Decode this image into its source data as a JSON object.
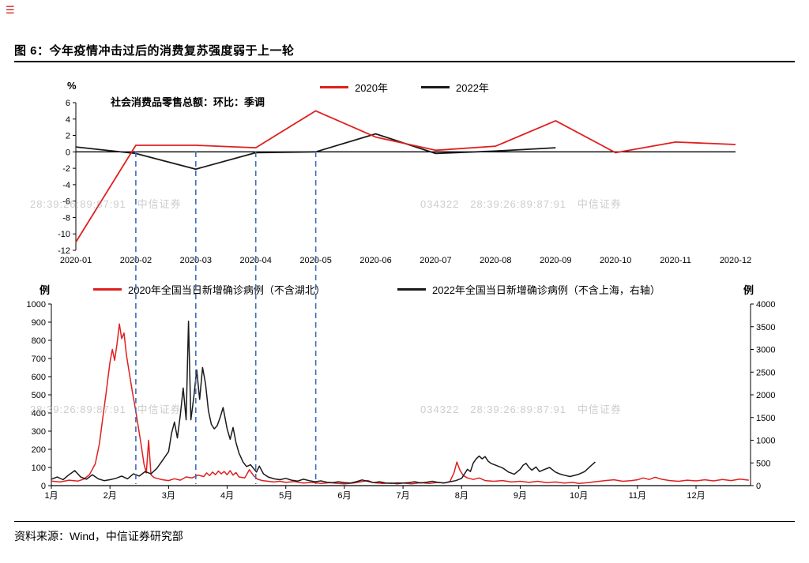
{
  "page": {
    "corner_icon": "☰",
    "title": "图 6：今年疫情冲击过后的消费复苏强度弱于上一轮",
    "source": "资料来源：Wind，中信证券研究部"
  },
  "watermarks": {
    "row1_left": "28:39:26:89:87:91   中信证券",
    "row1_right": "034322   28:39:26:89:87:91   中信证券",
    "row2_left": "28:39:26:89:87:91   中信证券",
    "row2_right": "034322   28:39:26:89:87:91   中信证券"
  },
  "chart_data": [
    {
      "type": "line",
      "title": "社会消费品零售总额：环比：季调",
      "ylabel": "%",
      "ylim": [
        -12,
        6
      ],
      "yticks": [
        6,
        4,
        2,
        0,
        -2,
        -4,
        -6,
        -8,
        -10,
        -12
      ],
      "grid": false,
      "legend_position": "top",
      "categories": [
        "2020-01",
        "2020-02",
        "2020-03",
        "2020-04",
        "2020-05",
        "2020-06",
        "2020-07",
        "2020-08",
        "2020-09",
        "2020-10",
        "2020-11",
        "2020-12"
      ],
      "series": [
        {
          "name": "2020年",
          "color": "#e01f1f",
          "values": [
            -11,
            0.8,
            0.8,
            0.5,
            5.0,
            1.8,
            0.2,
            0.7,
            3.8,
            -0.1,
            1.2,
            0.9
          ]
        },
        {
          "name": "2022年",
          "color": "#1a1a1a",
          "values": [
            0.6,
            -0.2,
            -2.1,
            -0.1,
            0.0,
            2.2,
            -0.2,
            0.1,
            0.5,
            null,
            null,
            null
          ]
        }
      ],
      "dashed_guides_at_categories": [
        "2020-02",
        "2020-03",
        "2020-04",
        "2020-05"
      ],
      "dashed_guide_color": "#3f6fb5"
    },
    {
      "type": "line",
      "xlim": [
        1,
        12.93
      ],
      "x_ticks": [
        "1月",
        "2月",
        "3月",
        "4月",
        "5月",
        "6月",
        "7月",
        "8月",
        "9月",
        "10月",
        "11月",
        "12月"
      ],
      "left_axis": {
        "label": "例",
        "lim": [
          0,
          1000
        ],
        "ticks": [
          0,
          100,
          200,
          300,
          400,
          500,
          600,
          700,
          800,
          900,
          1000
        ]
      },
      "right_axis": {
        "label": "例",
        "lim": [
          0,
          4000
        ],
        "ticks": [
          0,
          500,
          1000,
          1500,
          2000,
          2500,
          3000,
          3500,
          4000
        ]
      },
      "series": [
        {
          "name": "2020年全国当日新增确诊病例（不含湖北）",
          "color": "#e01f1f",
          "axis": "left",
          "points": [
            [
              1.0,
              25
            ],
            [
              1.15,
              20
            ],
            [
              1.3,
              30
            ],
            [
              1.45,
              25
            ],
            [
              1.55,
              35
            ],
            [
              1.65,
              60
            ],
            [
              1.75,
              120
            ],
            [
              1.82,
              230
            ],
            [
              1.88,
              380
            ],
            [
              1.93,
              500
            ],
            [
              2.0,
              680
            ],
            [
              2.04,
              750
            ],
            [
              2.08,
              690
            ],
            [
              2.12,
              780
            ],
            [
              2.16,
              890
            ],
            [
              2.2,
              810
            ],
            [
              2.24,
              840
            ],
            [
              2.28,
              720
            ],
            [
              2.33,
              620
            ],
            [
              2.38,
              520
            ],
            [
              2.43,
              430
            ],
            [
              2.48,
              330
            ],
            [
              2.53,
              230
            ],
            [
              2.58,
              120
            ],
            [
              2.62,
              70
            ],
            [
              2.66,
              250
            ],
            [
              2.7,
              60
            ],
            [
              2.75,
              45
            ],
            [
              2.8,
              40
            ],
            [
              2.9,
              32
            ],
            [
              3.0,
              28
            ],
            [
              3.1,
              38
            ],
            [
              3.2,
              30
            ],
            [
              3.3,
              48
            ],
            [
              3.4,
              42
            ],
            [
              3.5,
              58
            ],
            [
              3.6,
              50
            ],
            [
              3.65,
              70
            ],
            [
              3.7,
              55
            ],
            [
              3.75,
              75
            ],
            [
              3.8,
              60
            ],
            [
              3.85,
              80
            ],
            [
              3.9,
              65
            ],
            [
              3.95,
              78
            ],
            [
              4.0,
              60
            ],
            [
              4.05,
              82
            ],
            [
              4.1,
              58
            ],
            [
              4.15,
              72
            ],
            [
              4.2,
              48
            ],
            [
              4.3,
              42
            ],
            [
              4.38,
              88
            ],
            [
              4.45,
              55
            ],
            [
              4.52,
              35
            ],
            [
              4.6,
              28
            ],
            [
              4.7,
              24
            ],
            [
              4.8,
              20
            ],
            [
              4.9,
              24
            ],
            [
              5.0,
              18
            ],
            [
              5.15,
              22
            ],
            [
              5.3,
              14
            ],
            [
              5.45,
              18
            ],
            [
              5.6,
              12
            ],
            [
              5.75,
              16
            ],
            [
              5.9,
              12
            ],
            [
              6.0,
              10
            ],
            [
              6.15,
              14
            ],
            [
              6.3,
              22
            ],
            [
              6.4,
              28
            ],
            [
              6.5,
              16
            ],
            [
              6.65,
              12
            ],
            [
              6.8,
              15
            ],
            [
              6.9,
              10
            ],
            [
              7.0,
              14
            ],
            [
              7.15,
              10
            ],
            [
              7.3,
              16
            ],
            [
              7.45,
              12
            ],
            [
              7.6,
              18
            ],
            [
              7.7,
              14
            ],
            [
              7.8,
              22
            ],
            [
              7.87,
              70
            ],
            [
              7.92,
              130
            ],
            [
              7.97,
              85
            ],
            [
              8.03,
              55
            ],
            [
              8.1,
              42
            ],
            [
              8.2,
              34
            ],
            [
              8.3,
              42
            ],
            [
              8.4,
              28
            ],
            [
              8.55,
              24
            ],
            [
              8.7,
              28
            ],
            [
              8.85,
              20
            ],
            [
              9.0,
              24
            ],
            [
              9.15,
              18
            ],
            [
              9.3,
              24
            ],
            [
              9.45,
              16
            ],
            [
              9.6,
              20
            ],
            [
              9.75,
              14
            ],
            [
              9.9,
              18
            ],
            [
              10.0,
              12
            ],
            [
              10.15,
              16
            ],
            [
              10.3,
              22
            ],
            [
              10.45,
              28
            ],
            [
              10.6,
              32
            ],
            [
              10.75,
              24
            ],
            [
              10.9,
              28
            ],
            [
              11.0,
              32
            ],
            [
              11.1,
              42
            ],
            [
              11.2,
              34
            ],
            [
              11.3,
              46
            ],
            [
              11.4,
              36
            ],
            [
              11.55,
              28
            ],
            [
              11.7,
              24
            ],
            [
              11.85,
              30
            ],
            [
              12.0,
              26
            ],
            [
              12.15,
              32
            ],
            [
              12.3,
              26
            ],
            [
              12.45,
              34
            ],
            [
              12.6,
              28
            ],
            [
              12.75,
              36
            ],
            [
              12.9,
              30
            ]
          ]
        },
        {
          "name": "2022年全国当日新增确诊病例（不含上海，右轴）",
          "color": "#1a1a1a",
          "axis": "right",
          "points": [
            [
              1.0,
              140
            ],
            [
              1.1,
              190
            ],
            [
              1.2,
              130
            ],
            [
              1.3,
              240
            ],
            [
              1.4,
              330
            ],
            [
              1.5,
              190
            ],
            [
              1.6,
              140
            ],
            [
              1.7,
              240
            ],
            [
              1.8,
              150
            ],
            [
              1.9,
              110
            ],
            [
              2.0,
              130
            ],
            [
              2.1,
              160
            ],
            [
              2.2,
              210
            ],
            [
              2.3,
              150
            ],
            [
              2.4,
              260
            ],
            [
              2.5,
              210
            ],
            [
              2.6,
              310
            ],
            [
              2.7,
              260
            ],
            [
              2.8,
              380
            ],
            [
              2.9,
              560
            ],
            [
              3.0,
              750
            ],
            [
              3.05,
              1150
            ],
            [
              3.1,
              1400
            ],
            [
              3.15,
              1050
            ],
            [
              3.2,
              1550
            ],
            [
              3.25,
              2150
            ],
            [
              3.3,
              1450
            ],
            [
              3.34,
              3620
            ],
            [
              3.38,
              1450
            ],
            [
              3.43,
              1950
            ],
            [
              3.48,
              2550
            ],
            [
              3.53,
              1900
            ],
            [
              3.58,
              2600
            ],
            [
              3.63,
              2250
            ],
            [
              3.68,
              1650
            ],
            [
              3.73,
              1350
            ],
            [
              3.78,
              1250
            ],
            [
              3.83,
              1320
            ],
            [
              3.88,
              1500
            ],
            [
              3.93,
              1720
            ],
            [
              4.0,
              1250
            ],
            [
              4.05,
              1020
            ],
            [
              4.1,
              1280
            ],
            [
              4.15,
              950
            ],
            [
              4.2,
              720
            ],
            [
              4.27,
              520
            ],
            [
              4.33,
              420
            ],
            [
              4.4,
              460
            ],
            [
              4.45,
              380
            ],
            [
              4.5,
              300
            ],
            [
              4.55,
              430
            ],
            [
              4.62,
              260
            ],
            [
              4.7,
              190
            ],
            [
              4.8,
              150
            ],
            [
              4.9,
              130
            ],
            [
              5.0,
              160
            ],
            [
              5.1,
              120
            ],
            [
              5.2,
              100
            ],
            [
              5.3,
              140
            ],
            [
              5.4,
              110
            ],
            [
              5.5,
              85
            ],
            [
              5.6,
              105
            ],
            [
              5.7,
              75
            ],
            [
              5.8,
              65
            ],
            [
              5.9,
              85
            ],
            [
              6.0,
              65
            ],
            [
              6.1,
              55
            ],
            [
              6.2,
              85
            ],
            [
              6.3,
              125
            ],
            [
              6.4,
              95
            ],
            [
              6.5,
              65
            ],
            [
              6.6,
              85
            ],
            [
              6.7,
              60
            ],
            [
              6.8,
              50
            ],
            [
              6.9,
              60
            ],
            [
              7.0,
              55
            ],
            [
              7.1,
              65
            ],
            [
              7.2,
              85
            ],
            [
              7.3,
              60
            ],
            [
              7.4,
              75
            ],
            [
              7.5,
              95
            ],
            [
              7.6,
              70
            ],
            [
              7.7,
              60
            ],
            [
              7.8,
              85
            ],
            [
              7.9,
              110
            ],
            [
              8.0,
              160
            ],
            [
              8.05,
              260
            ],
            [
              8.1,
              360
            ],
            [
              8.15,
              310
            ],
            [
              8.2,
              500
            ],
            [
              8.25,
              590
            ],
            [
              8.3,
              650
            ],
            [
              8.35,
              590
            ],
            [
              8.4,
              640
            ],
            [
              8.45,
              540
            ],
            [
              8.5,
              490
            ],
            [
              8.6,
              440
            ],
            [
              8.7,
              390
            ],
            [
              8.8,
              300
            ],
            [
              8.9,
              250
            ],
            [
              9.0,
              360
            ],
            [
              9.05,
              450
            ],
            [
              9.1,
              490
            ],
            [
              9.15,
              400
            ],
            [
              9.2,
              340
            ],
            [
              9.27,
              410
            ],
            [
              9.33,
              310
            ],
            [
              9.4,
              350
            ],
            [
              9.5,
              400
            ],
            [
              9.6,
              300
            ],
            [
              9.67,
              260
            ],
            [
              9.75,
              230
            ],
            [
              9.85,
              200
            ],
            [
              10.0,
              250
            ],
            [
              10.1,
              310
            ],
            [
              10.2,
              430
            ],
            [
              10.28,
              520
            ]
          ]
        }
      ]
    }
  ]
}
